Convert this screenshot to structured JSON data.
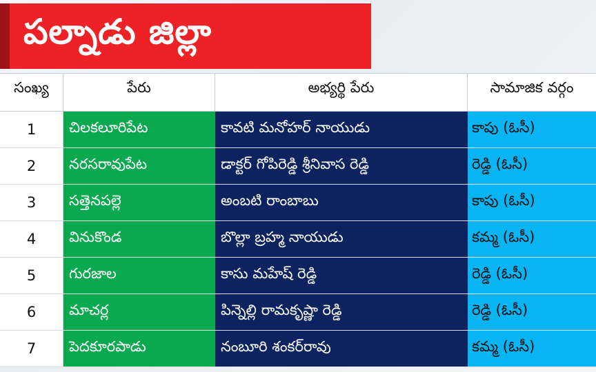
{
  "title": "పల్నాడు జిల్లా",
  "table": {
    "headers": {
      "number": "సంఖ్య",
      "constituency": "పేరు",
      "candidate": "అభ్యర్థి పేరు",
      "community": "సామాజిక వర్గం"
    },
    "rows": [
      {
        "number": "1",
        "constituency": "చిలకలూరిపేట",
        "candidate": "కావటి మనోహర్ నాయుడు",
        "community": "కాపు (ఓసీ)"
      },
      {
        "number": "2",
        "constituency": "నరసరావుపేట",
        "candidate": "డాక్టర్ గోపిరెడ్డి శ్రీనివాస రెడ్డి",
        "community": "రెడ్డి (ఓసీ)"
      },
      {
        "number": "3",
        "constituency": "సత్తెనపల్లె",
        "candidate": "అంబటి రాంబాబు",
        "community": "కాపు (ఓసీ)"
      },
      {
        "number": "4",
        "constituency": "వినుకొండ",
        "candidate": "బొల్లా బ్రహ్మ నాయుడు",
        "community": "కమ్మ (ఓసీ)"
      },
      {
        "number": "5",
        "constituency": "గురజాల",
        "candidate": "కాసు మహేష్ రెడ్డి",
        "community": "రెడ్డి (ఓసీ)"
      },
      {
        "number": "6",
        "constituency": "మాచర్ల",
        "candidate": "పిన్నెల్లి రామకృష్ణా రెడ్డి",
        "community": "రెడ్డి (ఓసీ)"
      },
      {
        "number": "7",
        "constituency": "పెదకూరపాడు",
        "candidate": "నంబూరి శంకర్‌రావు",
        "community": "కమ్మ (ఓసీ)"
      }
    ]
  },
  "colors": {
    "banner": "#ec2227",
    "banner_edge": "#9e1317",
    "constituency_column": "#0aa84f",
    "candidate_column": "#0c2360",
    "community_column": "#08b4f2"
  }
}
